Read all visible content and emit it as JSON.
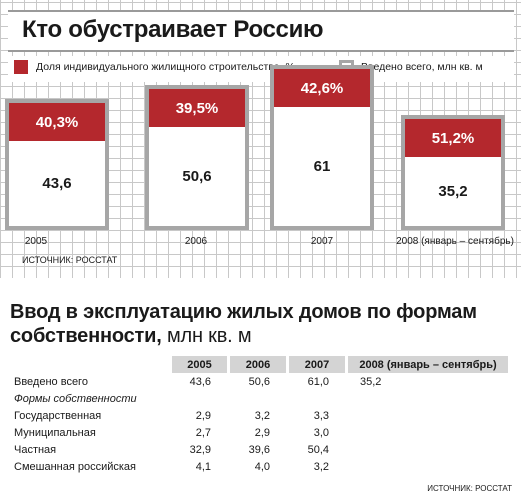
{
  "chart_data": [
    {
      "type": "bar",
      "title": "Кто обустраивает Россию",
      "legend": [
        "Доля индивидуального жилищного строительства, %",
        "Введено всего, млн кв. м"
      ],
      "categories": [
        "2005",
        "2006",
        "2007",
        "2008 (январь – сентябрь)"
      ],
      "series": [
        {
          "name": "Доля индивидуального жилищного строительства, %",
          "labels": [
            "40,3%",
            "39,5%",
            "42,6%",
            "51,2%"
          ],
          "values": [
            40.3,
            39.5,
            42.6,
            51.2
          ]
        },
        {
          "name": "Введено всего, млн кв. м",
          "labels": [
            "43,6",
            "50,6",
            "61",
            "35,2"
          ],
          "values": [
            43.6,
            50.6,
            61,
            35.2
          ]
        }
      ],
      "source": "ИСТОЧНИК: РОССТАТ",
      "colors": {
        "share": "#b4282d",
        "total": "#ffffff",
        "frame": "#a6a6a6"
      }
    },
    {
      "type": "table",
      "title": "Ввод в эксплуатацию жилых домов по формам собственности,",
      "unit": "млн кв. м",
      "columns": [
        "2005",
        "2006",
        "2007",
        "2008 (январь – сентябрь)"
      ],
      "rows": [
        {
          "label": "Введено всего",
          "values": [
            "43,6",
            "50,6",
            "61,0",
            "35,2"
          ],
          "style": "total"
        },
        {
          "label": "Формы собственности",
          "values": [
            "",
            "",
            "",
            ""
          ],
          "style": "subhead"
        },
        {
          "label": "Государственная",
          "values": [
            "2,9",
            "3,2",
            "3,3",
            ""
          ]
        },
        {
          "label": "Муниципальная",
          "values": [
            "2,7",
            "2,9",
            "3,0",
            ""
          ]
        },
        {
          "label": "Частная",
          "values": [
            "32,9",
            "39,6",
            "50,4",
            ""
          ]
        },
        {
          "label": "Смешанная российская",
          "values": [
            "4,1",
            "4,0",
            "3,2",
            ""
          ]
        }
      ],
      "source": "ИСТОЧНИК: РОССТАТ"
    }
  ]
}
